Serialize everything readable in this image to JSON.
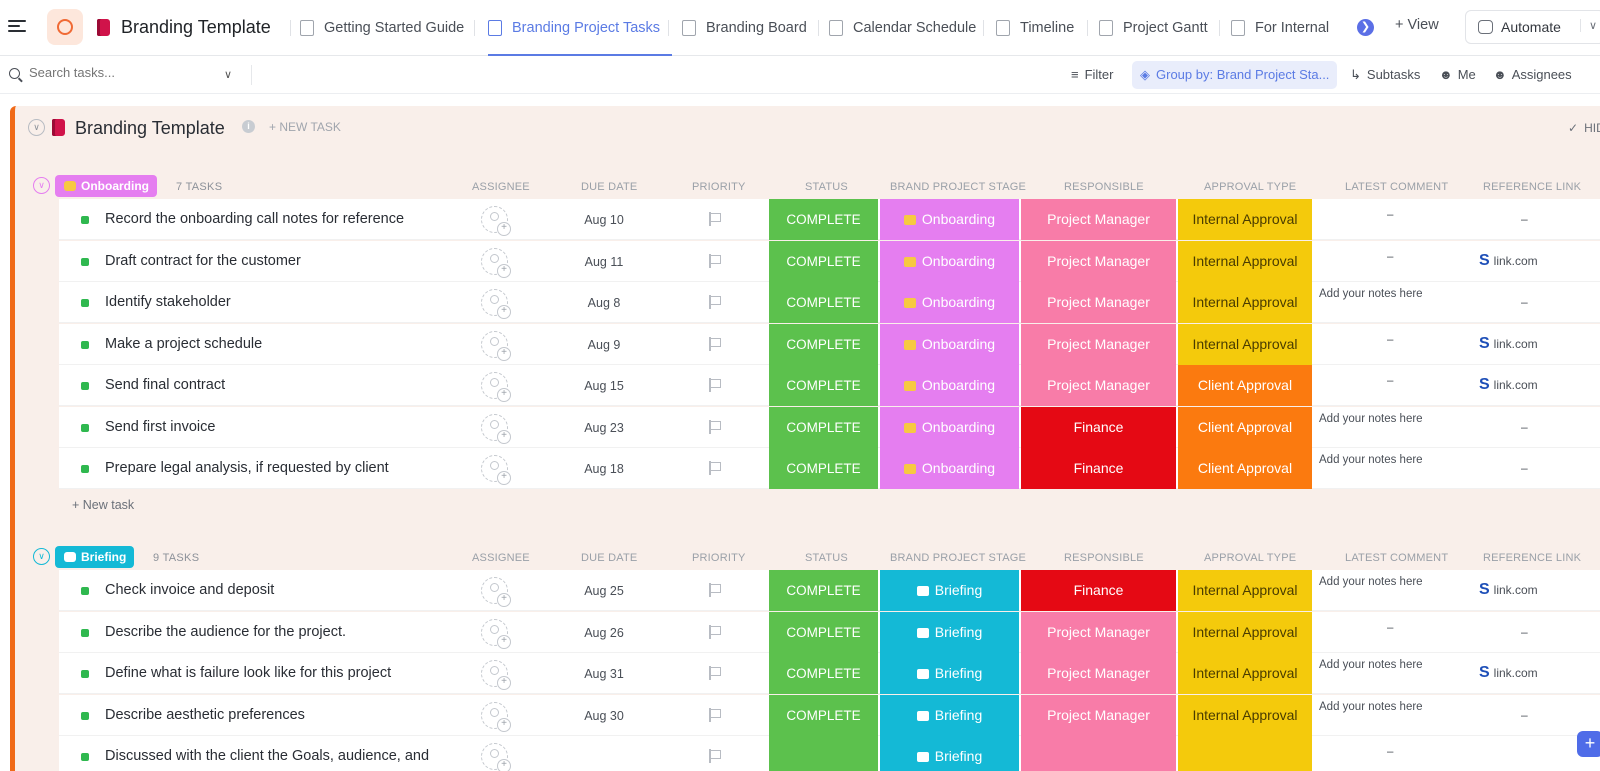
{
  "app": {
    "title": "Branding Template"
  },
  "tabs": [
    {
      "label": "Getting Started Guide"
    },
    {
      "label": "Branding Project Tasks"
    },
    {
      "label": "Branding Board"
    },
    {
      "label": "Calendar Schedule"
    },
    {
      "label": "Timeline"
    },
    {
      "label": "Project Gantt"
    },
    {
      "label": "For Internal"
    }
  ],
  "header": {
    "view_label": "+ View",
    "automate_label": "Automate"
  },
  "toolbar": {
    "search_placeholder": "Search tasks...",
    "filter_label": "Filter",
    "groupby_label": "Group by: Brand Project Sta...",
    "subtasks_label": "Subtasks",
    "me_label": "Me",
    "assignees_label": "Assignees"
  },
  "list": {
    "title": "Branding Template",
    "new_task_label": "+ NEW TASK",
    "hide_label": "HID"
  },
  "columns": {
    "assignee": "ASSIGNEE",
    "due_date": "DUE DATE",
    "priority": "PRIORITY",
    "status": "STATUS",
    "stage": "BRAND PROJECT STAGE",
    "responsible": "RESPONSIBLE",
    "approval": "APPROVAL TYPE",
    "comment": "LATEST COMMENT",
    "reference": "REFERENCE LINK"
  },
  "colors": {
    "status_complete": "#5cc14d",
    "stage_onboarding": "#e57ef0",
    "stage_briefing": "#14b9d6",
    "project_manager": "#f87ca8",
    "finance": "#e50914",
    "internal_approval": "#f4ca0c",
    "client_approval": "#fb7a0f",
    "accent": "#5b7be4"
  },
  "groups": [
    {
      "name": "Onboarding",
      "count_label": "7 TASKS",
      "new_task_label": "+ New task",
      "tasks": [
        {
          "name": "Record the onboarding call notes for reference",
          "due": "Aug 10",
          "status": "COMPLETE",
          "stage": "Onboarding",
          "responsible": "Project Manager",
          "approval": "Internal Approval",
          "comment": "–",
          "reference": "–"
        },
        {
          "name": "Draft contract for the customer",
          "due": "Aug 11",
          "status": "COMPLETE",
          "stage": "Onboarding",
          "responsible": "Project Manager",
          "approval": "Internal Approval",
          "comment": "–",
          "reference": "link.com"
        },
        {
          "name": "Identify stakeholder",
          "due": "Aug 8",
          "status": "COMPLETE",
          "stage": "Onboarding",
          "responsible": "Project Manager",
          "approval": "Internal Approval",
          "comment": "Add your notes here",
          "reference": "–"
        },
        {
          "name": "Make a project schedule",
          "due": "Aug 9",
          "status": "COMPLETE",
          "stage": "Onboarding",
          "responsible": "Project Manager",
          "approval": "Internal Approval",
          "comment": "–",
          "reference": "link.com"
        },
        {
          "name": "Send final contract",
          "due": "Aug 15",
          "status": "COMPLETE",
          "stage": "Onboarding",
          "responsible": "Project Manager",
          "approval": "Client Approval",
          "comment": "–",
          "reference": "link.com"
        },
        {
          "name": "Send first invoice",
          "due": "Aug 23",
          "status": "COMPLETE",
          "stage": "Onboarding",
          "responsible": "Finance",
          "approval": "Client Approval",
          "comment": "Add your notes here",
          "reference": "–"
        },
        {
          "name": "Prepare legal analysis, if requested by client",
          "due": "Aug 18",
          "status": "COMPLETE",
          "stage": "Onboarding",
          "responsible": "Finance",
          "approval": "Client Approval",
          "comment": "Add your notes here",
          "reference": "–"
        }
      ]
    },
    {
      "name": "Briefing",
      "count_label": "9 TASKS",
      "tasks": [
        {
          "name": "Check invoice and deposit",
          "due": "Aug 25",
          "status": "COMPLETE",
          "stage": "Briefing",
          "responsible": "Finance",
          "approval": "Internal Approval",
          "comment": "Add your notes here",
          "reference": "link.com"
        },
        {
          "name": "Describe the audience for the project.",
          "due": "Aug 26",
          "status": "COMPLETE",
          "stage": "Briefing",
          "responsible": "Project Manager",
          "approval": "Internal Approval",
          "comment": "–",
          "reference": "–"
        },
        {
          "name": "Define what is failure look like for this project",
          "due": "Aug 31",
          "status": "COMPLETE",
          "stage": "Briefing",
          "responsible": "Project Manager",
          "approval": "Internal Approval",
          "comment": "Add your notes here",
          "reference": "link.com"
        },
        {
          "name": "Describe aesthetic preferences",
          "due": "Aug 30",
          "status": "COMPLETE",
          "stage": "Briefing",
          "responsible": "Project Manager",
          "approval": "Internal Approval",
          "comment": "Add your notes here",
          "reference": "–"
        },
        {
          "name": "Discussed with the client the Goals, audience, and",
          "due": "",
          "status": "",
          "stage": "Briefing",
          "responsible": "",
          "approval": "",
          "comment": "–",
          "reference": ""
        }
      ]
    }
  ]
}
